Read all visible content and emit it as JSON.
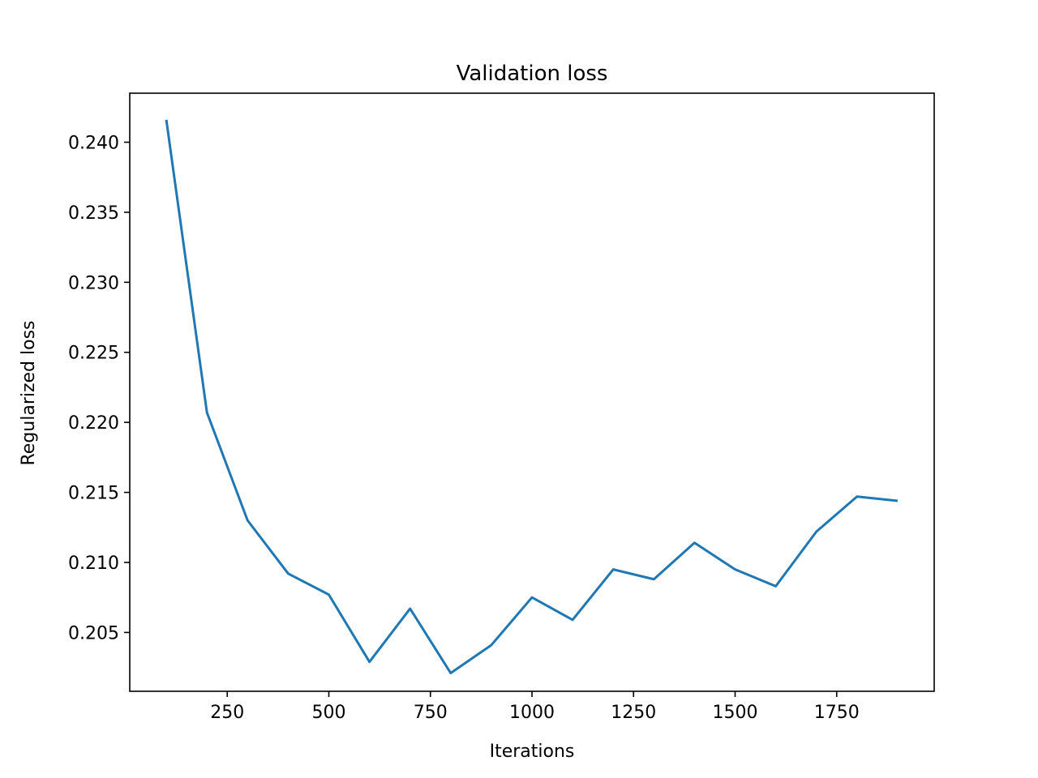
{
  "chart_data": {
    "type": "line",
    "title": "Validation loss",
    "xlabel": "Iterations",
    "ylabel": "Regularized loss",
    "xlim": [
      10,
      1990
    ],
    "ylim": [
      0.2008,
      0.2435
    ],
    "x_ticks": [
      250,
      500,
      750,
      1000,
      1250,
      1500,
      1750
    ],
    "x_tick_labels": [
      "250",
      "500",
      "750",
      "1000",
      "1250",
      "1500",
      "1750"
    ],
    "y_ticks": [
      0.205,
      0.21,
      0.215,
      0.22,
      0.225,
      0.23,
      0.235,
      0.24
    ],
    "y_tick_labels": [
      "0.205",
      "0.210",
      "0.215",
      "0.220",
      "0.225",
      "0.230",
      "0.235",
      "0.240"
    ],
    "grid": false,
    "series": [
      {
        "color": "#1f77b4",
        "x": [
          100,
          200,
          300,
          400,
          500,
          600,
          700,
          800,
          900,
          1000,
          1100,
          1200,
          1300,
          1400,
          1500,
          1600,
          1700,
          1800,
          1900
        ],
        "y": [
          0.2416,
          0.2207,
          0.213,
          0.2092,
          0.2077,
          0.2029,
          0.2067,
          0.2021,
          0.2041,
          0.2075,
          0.2059,
          0.2095,
          0.2088,
          0.2114,
          0.2095,
          0.2083,
          0.2122,
          0.2147,
          0.2144
        ]
      }
    ]
  }
}
